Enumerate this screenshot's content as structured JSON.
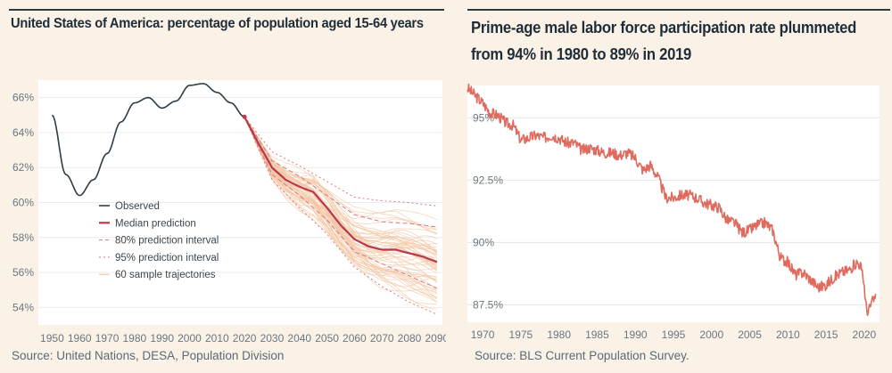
{
  "left_panel": {
    "title": "United States of America: percentage of population aged 15-64 years",
    "source": "Source: United Nations, DESA, Population Division"
  },
  "right_panel": {
    "title_line1": "Prime-age male labor force participation rate plummeted",
    "title_line2": "from 94% in 1980 to 89% in 2019",
    "source": "Source: BLS Current Population Survey."
  },
  "colors": {
    "background": "#faf1e7",
    "plot_bg": "#ffffff",
    "observed": "#2e3c46",
    "median": "#b8394c",
    "interval": "#d9777f",
    "trajectory": "#f3c7a6",
    "lfpr_line": "#df6a5e"
  },
  "chart_data": [
    {
      "type": "line",
      "title": "United States of America: percentage of population aged 15-64 years",
      "xlim": [
        1945,
        2092
      ],
      "ylim": [
        53,
        67
      ],
      "x_ticks": [
        "1950",
        "1960",
        "1970",
        "1980",
        "1990",
        "2000",
        "2010",
        "2020",
        "2030",
        "2040",
        "2050",
        "2060",
        "2070",
        "2080",
        "2090"
      ],
      "y_ticks": [
        "54%",
        "56%",
        "58%",
        "60%",
        "62%",
        "64%",
        "66%"
      ],
      "grid": true,
      "legend_position": "center-left",
      "legend": [
        "Observed",
        "Median prediction",
        "80% prediction interval",
        "95% prediction interval",
        "60 sample trajectories"
      ],
      "series": [
        {
          "name": "Observed",
          "x": [
            1950,
            1955,
            1960,
            1965,
            1970,
            1975,
            1980,
            1985,
            1990,
            1995,
            2000,
            2005,
            2010,
            2015,
            2020
          ],
          "y": [
            65.0,
            61.6,
            60.4,
            61.3,
            62.8,
            64.6,
            65.7,
            66.0,
            65.4,
            65.8,
            66.7,
            66.8,
            66.3,
            65.7,
            64.9
          ]
        },
        {
          "name": "Median prediction",
          "x": [
            2020,
            2025,
            2030,
            2035,
            2040,
            2045,
            2050,
            2055,
            2060,
            2065,
            2070,
            2075,
            2080,
            2085,
            2090
          ],
          "y": [
            64.9,
            63.4,
            62.0,
            61.3,
            60.9,
            60.6,
            59.7,
            58.7,
            57.9,
            57.5,
            57.3,
            57.3,
            57.1,
            56.9,
            56.6
          ]
        },
        {
          "name": "80% prediction interval",
          "x": [
            2020,
            2030,
            2040,
            2050,
            2060,
            2070,
            2080,
            2090
          ],
          "lower": [
            64.9,
            61.6,
            60.4,
            59.0,
            57.2,
            56.5,
            55.8,
            55.1
          ],
          "upper": [
            64.9,
            62.4,
            61.5,
            60.4,
            59.3,
            58.9,
            58.8,
            58.6
          ]
        },
        {
          "name": "95% prediction interval",
          "x": [
            2020,
            2030,
            2040,
            2050,
            2060,
            2070,
            2080,
            2090
          ],
          "lower": [
            64.9,
            61.3,
            59.7,
            58.2,
            56.3,
            55.2,
            54.3,
            53.6
          ],
          "upper": [
            64.9,
            62.9,
            62.1,
            61.2,
            60.3,
            60.1,
            60.0,
            59.8
          ]
        }
      ]
    },
    {
      "type": "line",
      "title": "Prime-age male labor force participation rate plummeted from 94% in 1980 to 89% in 2019",
      "xlim": [
        1968,
        2022
      ],
      "ylim": [
        86.8,
        96.3
      ],
      "x_ticks": [
        "1970",
        "1975",
        "1980",
        "1985",
        "1990",
        "1995",
        "2000",
        "2005",
        "2010",
        "2015",
        "2020"
      ],
      "y_ticks": [
        "87.5%",
        "90%",
        "92.5%",
        "95%"
      ],
      "grid": true,
      "series": [
        {
          "name": "",
          "x": [
            1968,
            1969,
            1970,
            1971,
            1972,
            1973,
            1974,
            1975,
            1976,
            1977,
            1978,
            1979,
            1980,
            1981,
            1982,
            1983,
            1984,
            1985,
            1986,
            1987,
            1988,
            1989,
            1990,
            1991,
            1992,
            1993,
            1994,
            1995,
            1996,
            1997,
            1998,
            1999,
            2000,
            2001,
            2002,
            2003,
            2004,
            2005,
            2006,
            2007,
            2008,
            2009,
            2010,
            2011,
            2012,
            2013,
            2014,
            2015,
            2016,
            2017,
            2018,
            2019,
            2019.5,
            2020,
            2020.2,
            2020.5,
            2021,
            2021.5
          ],
          "y": [
            96.2,
            95.9,
            95.6,
            95.2,
            95.1,
            94.8,
            94.7,
            94.1,
            94.2,
            94.3,
            94.2,
            94.3,
            94.2,
            94.0,
            94.0,
            93.7,
            93.8,
            93.7,
            93.6,
            93.6,
            93.5,
            93.6,
            93.4,
            92.9,
            93.1,
            92.6,
            91.8,
            91.8,
            91.9,
            91.9,
            91.8,
            91.6,
            91.5,
            91.4,
            90.9,
            90.8,
            90.4,
            90.5,
            90.7,
            90.8,
            90.5,
            89.4,
            89.2,
            88.7,
            88.8,
            88.5,
            88.2,
            88.3,
            88.6,
            88.8,
            88.9,
            89.2,
            89.1,
            88.3,
            87.5,
            87.2,
            87.6,
            87.8
          ]
        }
      ]
    }
  ]
}
